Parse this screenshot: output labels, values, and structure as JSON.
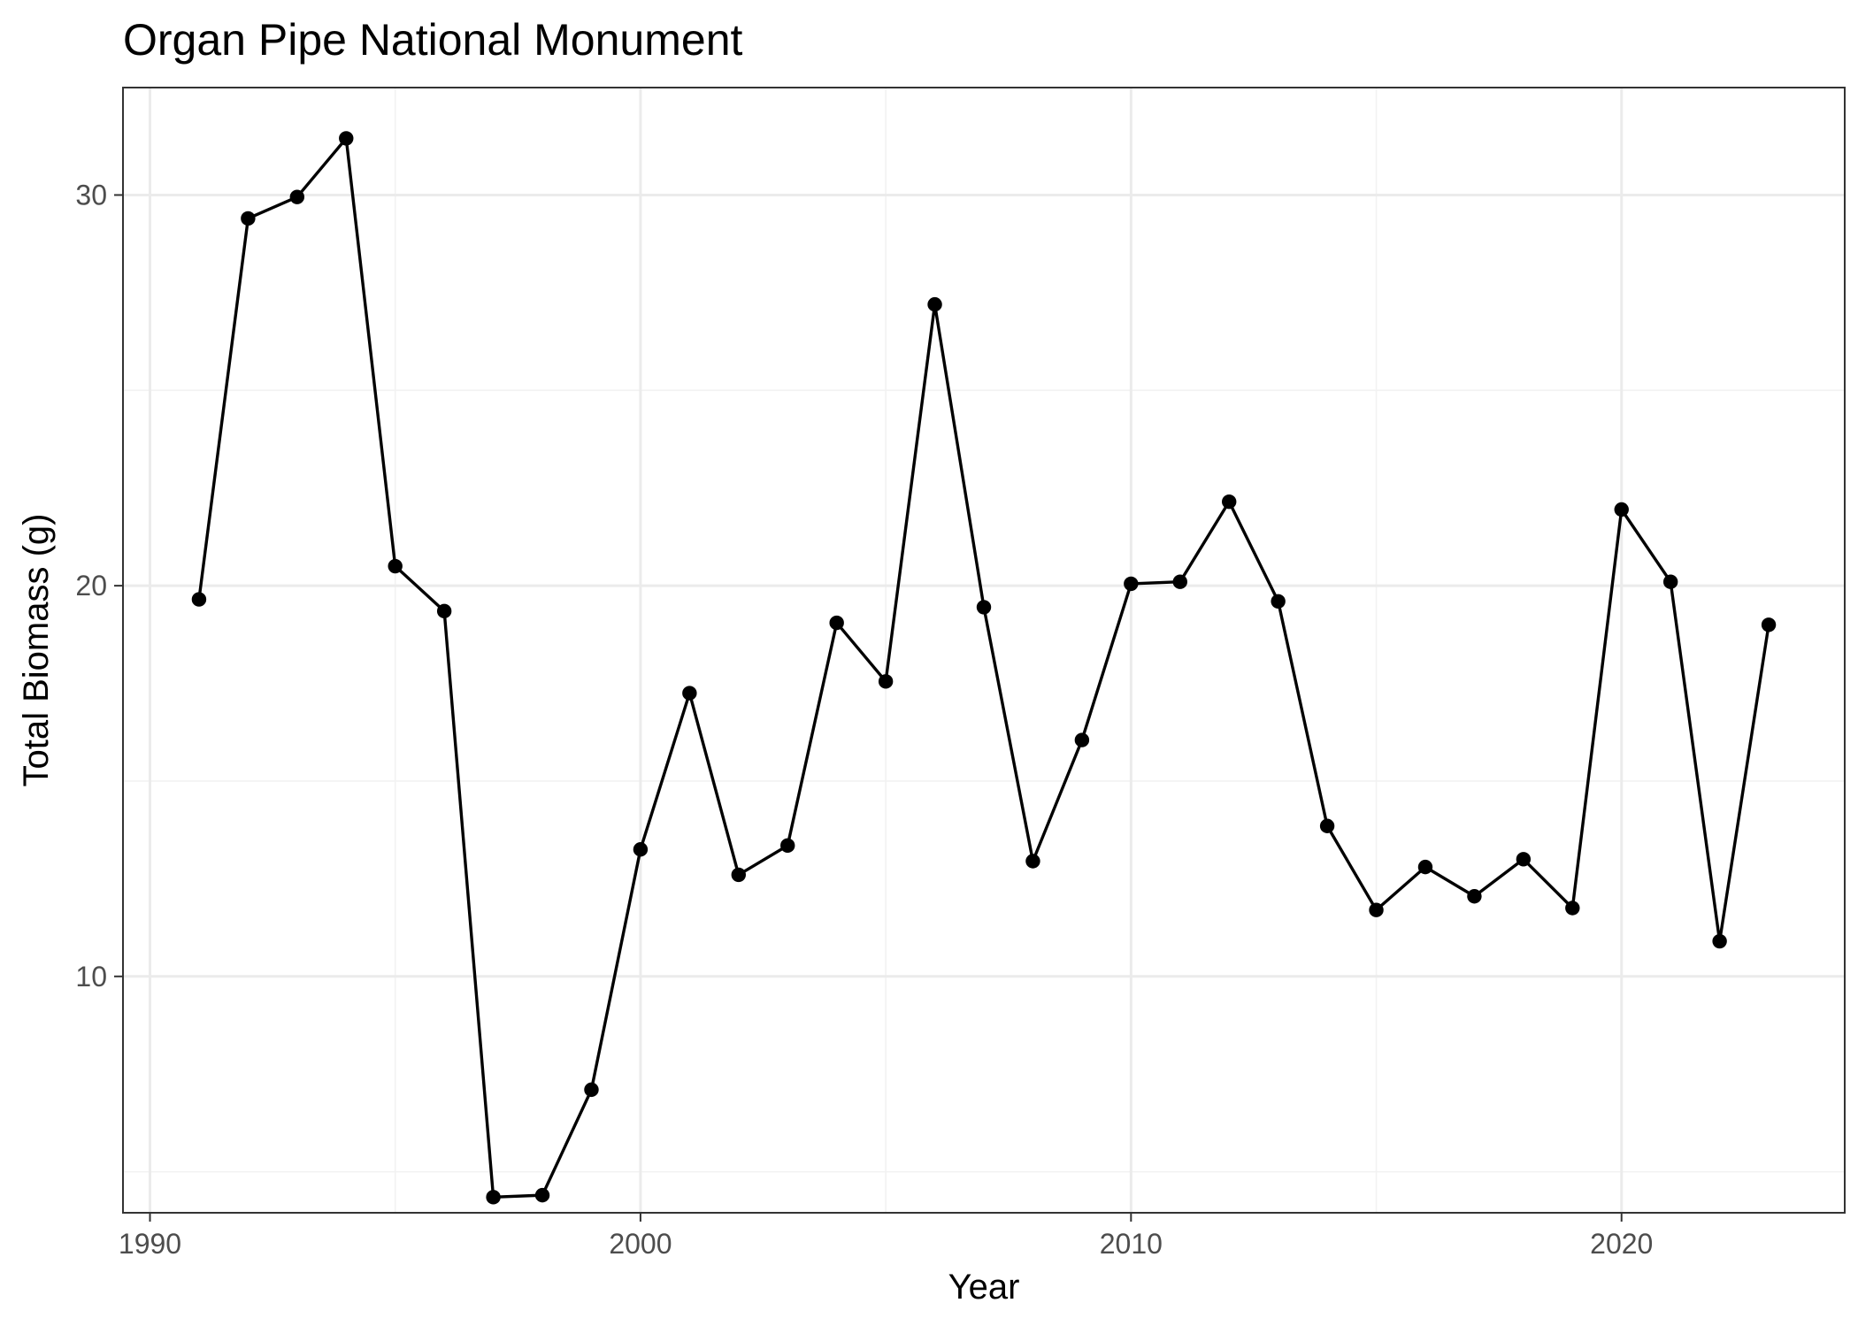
{
  "chart_data": {
    "type": "line",
    "title": "Organ Pipe National Monument",
    "xlabel": "Year",
    "ylabel": "Total Biomass (g)",
    "xlim": [
      1989.45,
      2024.55
    ],
    "ylim": [
      3.95,
      32.75
    ],
    "x_ticks": [
      1990,
      2000,
      2010,
      2020
    ],
    "x_tick_labels": [
      "1990",
      "2000",
      "2010",
      "2020"
    ],
    "y_ticks": [
      10,
      20,
      30
    ],
    "y_tick_labels": [
      "10",
      "20",
      "30"
    ],
    "grid": true,
    "legend": "none",
    "x": [
      1991,
      1992,
      1993,
      1994,
      1995,
      1996,
      1997,
      1998,
      1999,
      2000,
      2001,
      2002,
      2003,
      2004,
      2005,
      2006,
      2007,
      2008,
      2009,
      2010,
      2011,
      2012,
      2013,
      2014,
      2015,
      2016,
      2017,
      2018,
      2019,
      2020,
      2021,
      2022,
      2023
    ],
    "series": [
      {
        "values": [
          19.65,
          29.4,
          29.95,
          31.45,
          20.5,
          19.35,
          4.35,
          4.4,
          7.1,
          13.25,
          17.25,
          12.6,
          13.35,
          19.05,
          17.55,
          27.2,
          19.45,
          12.95,
          16.05,
          20.05,
          20.1,
          22.15,
          19.6,
          13.85,
          11.7,
          12.8,
          12.05,
          13.0,
          11.75,
          21.95,
          20.1,
          10.9,
          19.0
        ]
      }
    ],
    "colors": {
      "line": "#000000",
      "points": "#000000",
      "grid": "#ebebeb",
      "panel_border": "#333333"
    }
  }
}
